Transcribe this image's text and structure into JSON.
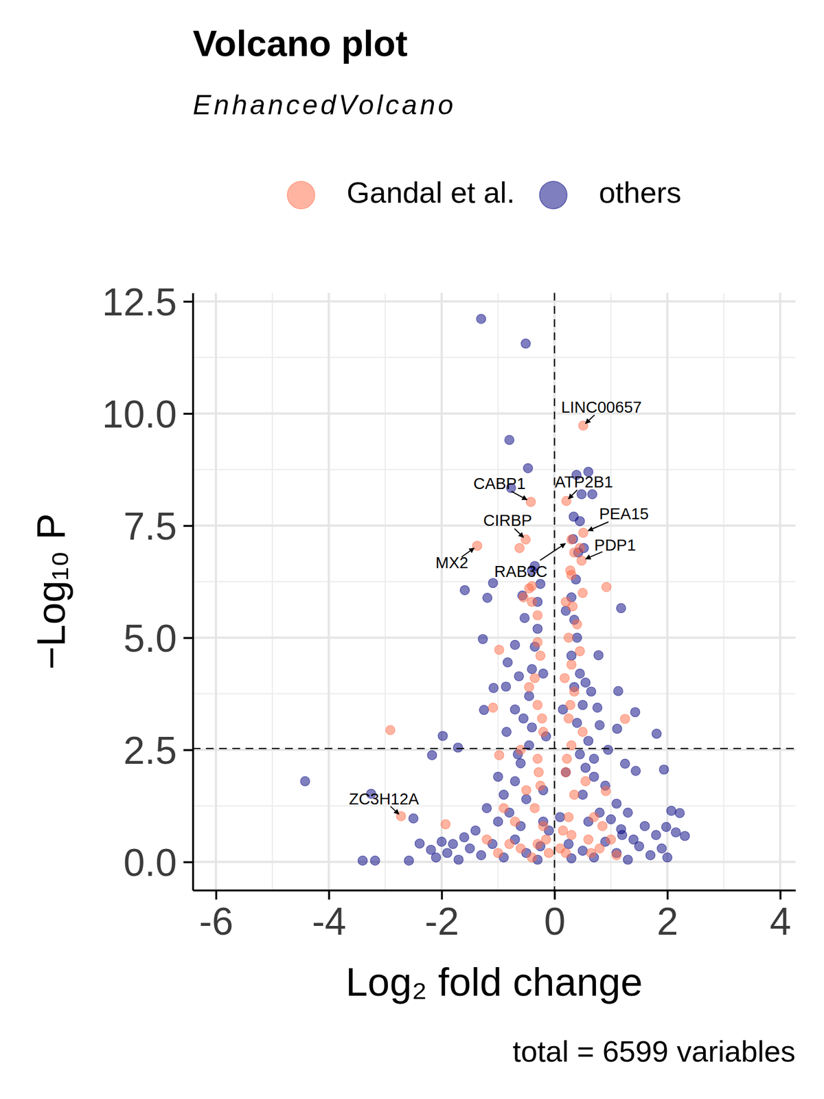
{
  "chart_data": {
    "type": "scatter",
    "title": "Volcano plot",
    "subtitle": "EnhancedVolcano",
    "x_label": "Log₂ fold change",
    "y_label": "−Log₁₀ P",
    "caption": "total = 6599 variables",
    "xlim": [
      -6.41,
      4.27
    ],
    "ylim": [
      -0.63,
      12.69
    ],
    "xticks": [
      -6,
      -4,
      -2,
      0,
      2,
      4
    ],
    "yticks": [
      {
        "value": 0,
        "label": "0.0"
      },
      2.5,
      {
        "value": 5,
        "label": "5.0"
      },
      7.5,
      {
        "value": 10,
        "label": "10.0"
      },
      12.5
    ],
    "grid": true,
    "legend": "top",
    "vline": 0,
    "hline": 2.53,
    "series": [
      {
        "name": "Gandal et al.",
        "color": "#ff6a45",
        "marker": "circle",
        "x": [
          0.51,
          -0.42,
          0.21,
          0.51,
          -0.51,
          0.48,
          0.3,
          -1.37,
          -2.72,
          -2.91,
          0.92,
          -1.93,
          -0.98,
          -1.09,
          1.25,
          0.91,
          -0.98,
          -0.62,
          -0.4,
          -0.55,
          0.35,
          0.28,
          -0.4,
          -0.3,
          -0.2,
          -0.35,
          -0.25,
          -0.3,
          -0.2,
          -0.3,
          -0.35,
          -0.25,
          -0.4,
          -0.3,
          -0.45,
          0.2,
          0.3,
          0.25,
          0.35,
          0.2,
          0.3,
          0.25,
          0.35,
          0.3,
          0.25,
          0.4,
          0.2,
          0.3,
          0.45,
          -0.6,
          0.6,
          -0.7,
          0.7,
          -0.5,
          0.55,
          -0.6,
          0.5,
          0.1,
          -0.1,
          0.65,
          -0.8,
          0.8,
          -1.0,
          1.0,
          0.45,
          -0.45,
          -0.15,
          0.15,
          -0.28,
          0.22,
          -0.22,
          0.28,
          0.18,
          -0.3,
          0.32,
          0.5,
          1.1,
          -1.2,
          0.85,
          -0.9
        ],
        "values": [
          9.73,
          8.03,
          8.05,
          7.34,
          7.19,
          6.72,
          7.19,
          7.05,
          1.02,
          2.94,
          6.13,
          0.84,
          4.73,
          3.44,
          3.19,
          1.58,
          2.38,
          7.0,
          6.15,
          5.9,
          6.9,
          6.5,
          0.1,
          0.4,
          0.8,
          1.2,
          1.7,
          2.3,
          2.9,
          3.5,
          4.1,
          4.6,
          5.8,
          5.5,
          6.1,
          0.2,
          0.6,
          1.0,
          1.5,
          2.0,
          2.6,
          3.2,
          3.8,
          4.4,
          5.0,
          5.3,
          5.8,
          6.4,
          7.0,
          0.3,
          0.5,
          0.9,
          1.0,
          1.6,
          1.8,
          2.5,
          2.9,
          0.3,
          0.2,
          0.2,
          0.4,
          0.3,
          0.2,
          0.5,
          4.7,
          3.9,
          0.5,
          0.7,
          2.0,
          2.3,
          3.2,
          3.5,
          4.1,
          4.9,
          5.7,
          6.0,
          0.15,
          0.5,
          0.8,
          1.2
        ]
      },
      {
        "name": "others",
        "color": "#000080",
        "marker": "circle",
        "x": [
          -1.3,
          -0.51,
          -0.8,
          -0.47,
          -0.77,
          0.39,
          0.6,
          0.48,
          0.67,
          0.34,
          -4.42,
          -3.25,
          -2.5,
          -1.59,
          -1.19,
          -1.27,
          -1.09,
          -1.98,
          -2.17,
          -1.71,
          1.18,
          1.81,
          1.94,
          1.43,
          1.11,
          1.18,
          1.13,
          1.25,
          1.44,
          2.07,
          2.22,
          2.31,
          2.15,
          1.98,
          -3.4,
          -3.18,
          -2.58,
          -2.19,
          -2.39,
          0.78,
          0.76,
          0.8,
          -0.63,
          -0.7,
          -0.83,
          -0.57,
          -0.53,
          -1.08,
          -0.86,
          -1.25,
          -2.1,
          -1.9,
          -1.7,
          -1.5,
          -1.3,
          -1.1,
          -0.9,
          -0.7,
          -0.5,
          -0.3,
          0.3,
          0.5,
          0.7,
          0.9,
          1.1,
          1.3,
          1.5,
          1.7,
          1.9,
          2.0,
          1.2,
          1.4,
          -1.6,
          -1.8,
          -1.4,
          -1.0,
          -0.8,
          -0.6,
          0.6,
          0.8,
          1.0,
          1.1,
          -1.2,
          -0.9,
          -0.7,
          -0.5,
          0.5,
          0.7,
          0.9,
          1.3,
          -1.0,
          -0.6,
          -0.45,
          -0.65,
          0.45,
          0.6,
          0.7,
          0.55,
          -0.4,
          -0.55,
          0.4,
          0.5,
          -0.45,
          0.35,
          0.45,
          -0.4,
          -0.35,
          0.3,
          0.4,
          -0.3,
          0.35,
          0.3,
          0.38,
          0.42,
          0.33,
          -0.25,
          -0.4,
          0.2,
          -0.2,
          0.15,
          -0.15,
          0.2,
          -0.2,
          0.1,
          -0.1,
          0.25,
          -0.25,
          1.6,
          1.8,
          -2.0,
          -0.2,
          0.95,
          -0.85,
          0.65,
          -0.7,
          0.55,
          0.52,
          0.45,
          -0.35,
          -0.3
        ],
        "values": [
          12.11,
          11.56,
          9.41,
          8.78,
          8.34,
          8.63,
          8.7,
          8.2,
          8.2,
          7.7,
          1.8,
          1.52,
          0.97,
          6.06,
          5.89,
          4.97,
          6.22,
          2.81,
          2.38,
          2.55,
          0.73,
          2.86,
          2.06,
          3.34,
          2.97,
          5.66,
          3.81,
          2.19,
          2.03,
          1.14,
          1.09,
          0.58,
          0.66,
          0.78,
          0.03,
          0.03,
          0.03,
          0.27,
          0.41,
          4.61,
          3.44,
          3.05,
          4.14,
          4.84,
          4.45,
          5.94,
          5.44,
          3.88,
          3.91,
          3.39,
          0.1,
          0.2,
          0.05,
          0.3,
          0.15,
          0.4,
          0.1,
          0.5,
          0.2,
          0.05,
          0.08,
          0.25,
          0.1,
          0.45,
          0.2,
          0.05,
          0.35,
          0.15,
          0.3,
          0.1,
          0.6,
          0.5,
          0.55,
          0.4,
          0.7,
          0.9,
          1.1,
          0.8,
          0.9,
          1.1,
          0.95,
          1.3,
          1.2,
          1.5,
          1.8,
          1.4,
          1.5,
          1.9,
          1.7,
          1.1,
          1.9,
          2.2,
          2.6,
          2.4,
          2.4,
          2.7,
          2.3,
          2.1,
          3.0,
          3.2,
          3.1,
          3.5,
          3.7,
          3.9,
          4.2,
          4.3,
          4.8,
          4.6,
          5.0,
          5.2,
          5.4,
          5.9,
          6.3,
          6.9,
          7.2,
          6.2,
          6.5,
          5.6,
          4.2,
          3.4,
          2.8,
          2.0,
          1.6,
          1.0,
          0.7,
          0.4,
          0.35,
          0.8,
          0.6,
          0.45,
          0.9,
          2.5,
          2.9,
          3.8,
          3.4,
          4.0,
          7.0,
          7.6,
          6.6,
          5.8
        ]
      }
    ],
    "annotations": [
      {
        "label": "LINC00657",
        "x": 0.51,
        "y": 9.73
      },
      {
        "label": "CABP1",
        "x": -0.42,
        "y": 8.03
      },
      {
        "label": "ATP2B1",
        "x": 0.21,
        "y": 8.05
      },
      {
        "label": "PEA15",
        "x": 0.51,
        "y": 7.34
      },
      {
        "label": "CIRBP",
        "x": -0.51,
        "y": 7.19
      },
      {
        "label": "PDP1",
        "x": 0.48,
        "y": 6.72
      },
      {
        "label": "RAB3C",
        "x": 0.3,
        "y": 7.19
      },
      {
        "label": "MX2",
        "x": -1.37,
        "y": 7.05
      },
      {
        "label": "ZC3H12A",
        "x": -2.72,
        "y": 1.02
      }
    ]
  }
}
